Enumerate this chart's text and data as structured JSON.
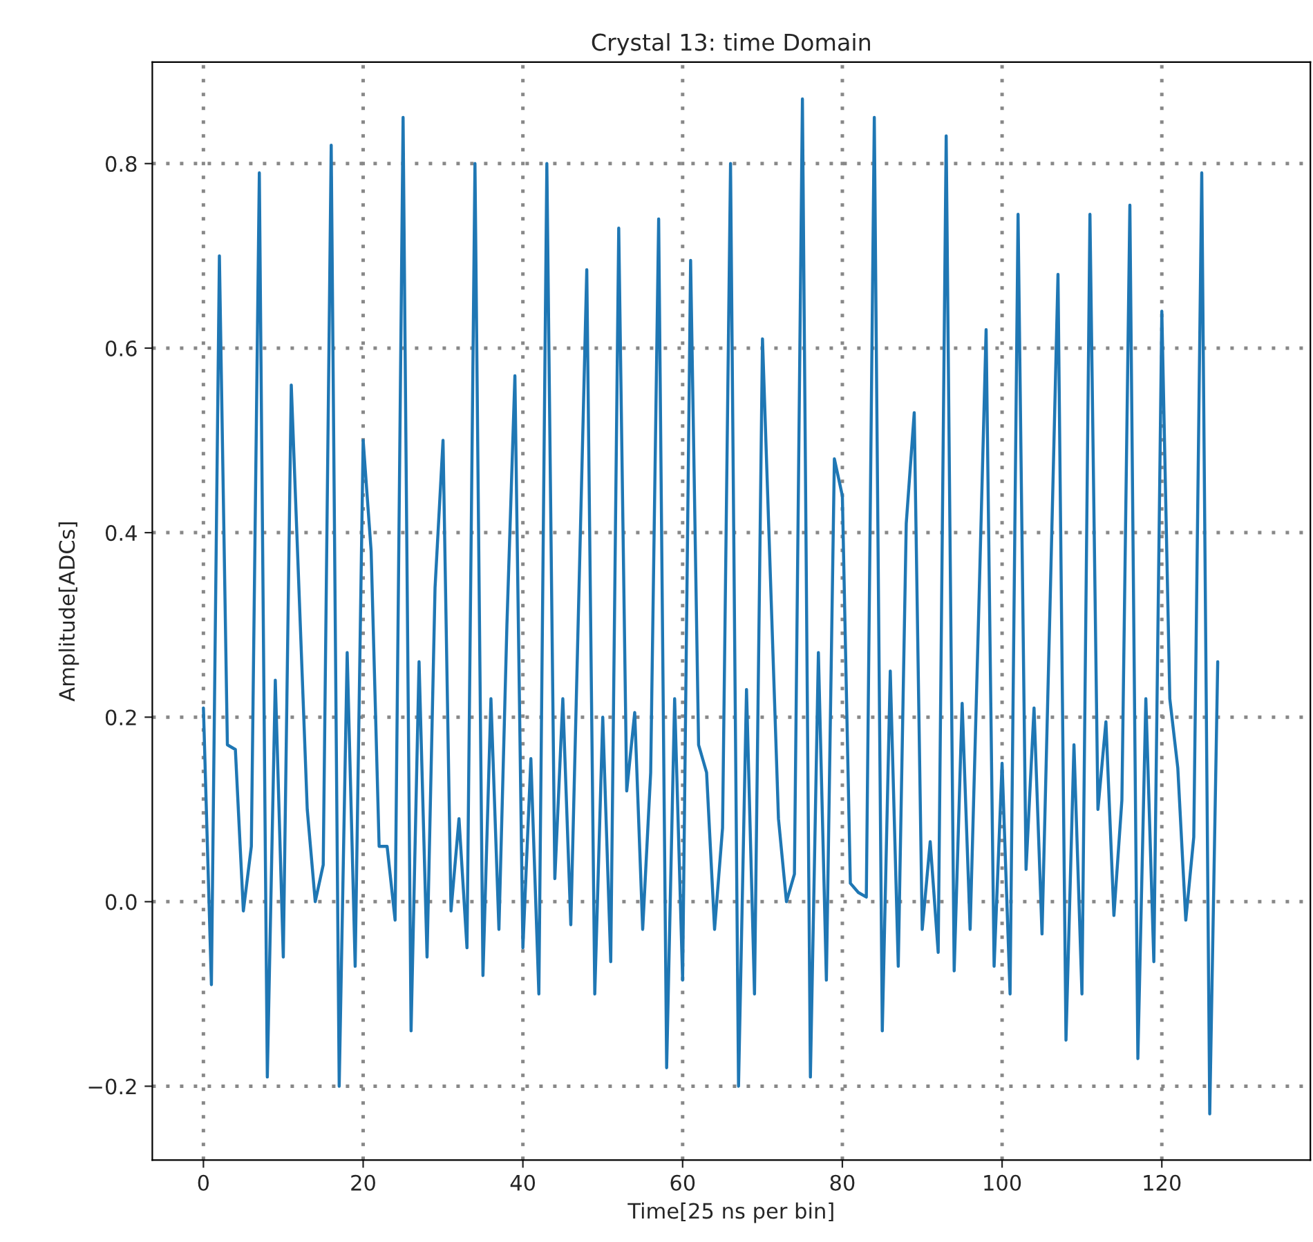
{
  "chart_data": {
    "type": "line",
    "title": "Crystal 13: time Domain",
    "xlabel": "Time[25 ns per bin]",
    "ylabel": "Amplitude[ADCs]",
    "x": [
      0,
      1,
      2,
      3,
      4,
      5,
      6,
      7,
      8,
      9,
      10,
      11,
      12,
      13,
      14,
      15,
      16,
      17,
      18,
      19,
      20,
      21,
      22,
      23,
      24,
      25,
      26,
      27,
      28,
      29,
      30,
      31,
      32,
      33,
      34,
      35,
      36,
      37,
      38,
      39,
      40,
      41,
      42,
      43,
      44,
      45,
      46,
      47,
      48,
      49,
      50,
      51,
      52,
      53,
      54,
      55,
      56,
      57,
      58,
      59,
      60,
      61,
      62,
      63,
      64,
      65,
      66,
      67,
      68,
      69,
      70,
      71,
      72,
      73,
      74,
      75,
      76,
      77,
      78,
      79,
      80,
      81,
      82,
      83,
      84,
      85,
      86,
      87,
      88,
      89,
      90,
      91,
      92,
      93,
      94,
      95,
      96,
      97,
      98,
      99,
      100,
      101,
      102,
      103,
      104,
      105,
      106,
      107,
      108,
      109,
      110,
      111,
      112,
      113,
      114,
      115,
      116,
      117,
      118,
      119,
      120,
      121,
      122,
      123,
      124,
      125,
      126,
      127
    ],
    "series": [
      {
        "color": "#1f77b4",
        "values": [
          0.21,
          -0.09,
          0.7,
          0.17,
          0.165,
          -0.01,
          0.06,
          0.79,
          -0.19,
          0.24,
          -0.06,
          0.56,
          0.33,
          0.1,
          0.0,
          0.04,
          0.82,
          -0.2,
          0.27,
          -0.07,
          0.5,
          0.38,
          0.06,
          0.06,
          -0.02,
          0.85,
          -0.14,
          0.26,
          -0.06,
          0.34,
          0.5,
          -0.01,
          0.09,
          -0.05,
          0.8,
          -0.08,
          0.22,
          -0.03,
          0.3,
          0.57,
          -0.05,
          0.155,
          -0.1,
          0.8,
          0.025,
          0.22,
          -0.025,
          0.33,
          0.685,
          -0.1,
          0.2,
          -0.065,
          0.73,
          0.12,
          0.205,
          -0.03,
          0.14,
          0.74,
          -0.18,
          0.22,
          -0.085,
          0.695,
          0.17,
          0.14,
          -0.03,
          0.08,
          0.8,
          -0.2,
          0.23,
          -0.1,
          0.61,
          0.35,
          0.09,
          0.0,
          0.03,
          0.87,
          -0.19,
          0.27,
          -0.085,
          0.48,
          0.44,
          0.02,
          0.01,
          0.005,
          0.85,
          -0.14,
          0.25,
          -0.07,
          0.41,
          0.53,
          -0.03,
          0.065,
          -0.055,
          0.83,
          -0.075,
          0.215,
          -0.03,
          0.29,
          0.62,
          -0.07,
          0.15,
          -0.1,
          0.745,
          0.035,
          0.21,
          -0.035,
          0.32,
          0.68,
          -0.15,
          0.17,
          -0.1,
          0.745,
          0.1,
          0.195,
          -0.015,
          0.11,
          0.755,
          -0.17,
          0.22,
          -0.065,
          0.64,
          0.22,
          0.145,
          -0.02,
          0.07,
          0.79,
          -0.23,
          0.26
        ]
      }
    ],
    "xlim": [
      -6.4,
      138.6
    ],
    "ylim": [
      -0.28,
      0.91
    ],
    "xticks": [
      0,
      20,
      40,
      60,
      80,
      100,
      120
    ],
    "yticks": [
      {
        "value": -0.2,
        "label": "−0.2"
      },
      {
        "value": 0.0,
        "label": "0.0"
      },
      {
        "value": 0.2,
        "label": "0.2"
      },
      {
        "value": 0.4,
        "label": "0.4"
      },
      {
        "value": 0.6,
        "label": "0.6"
      },
      {
        "value": 0.8,
        "label": "0.8"
      }
    ],
    "grid": true,
    "line_style": "solid",
    "legend": false
  }
}
